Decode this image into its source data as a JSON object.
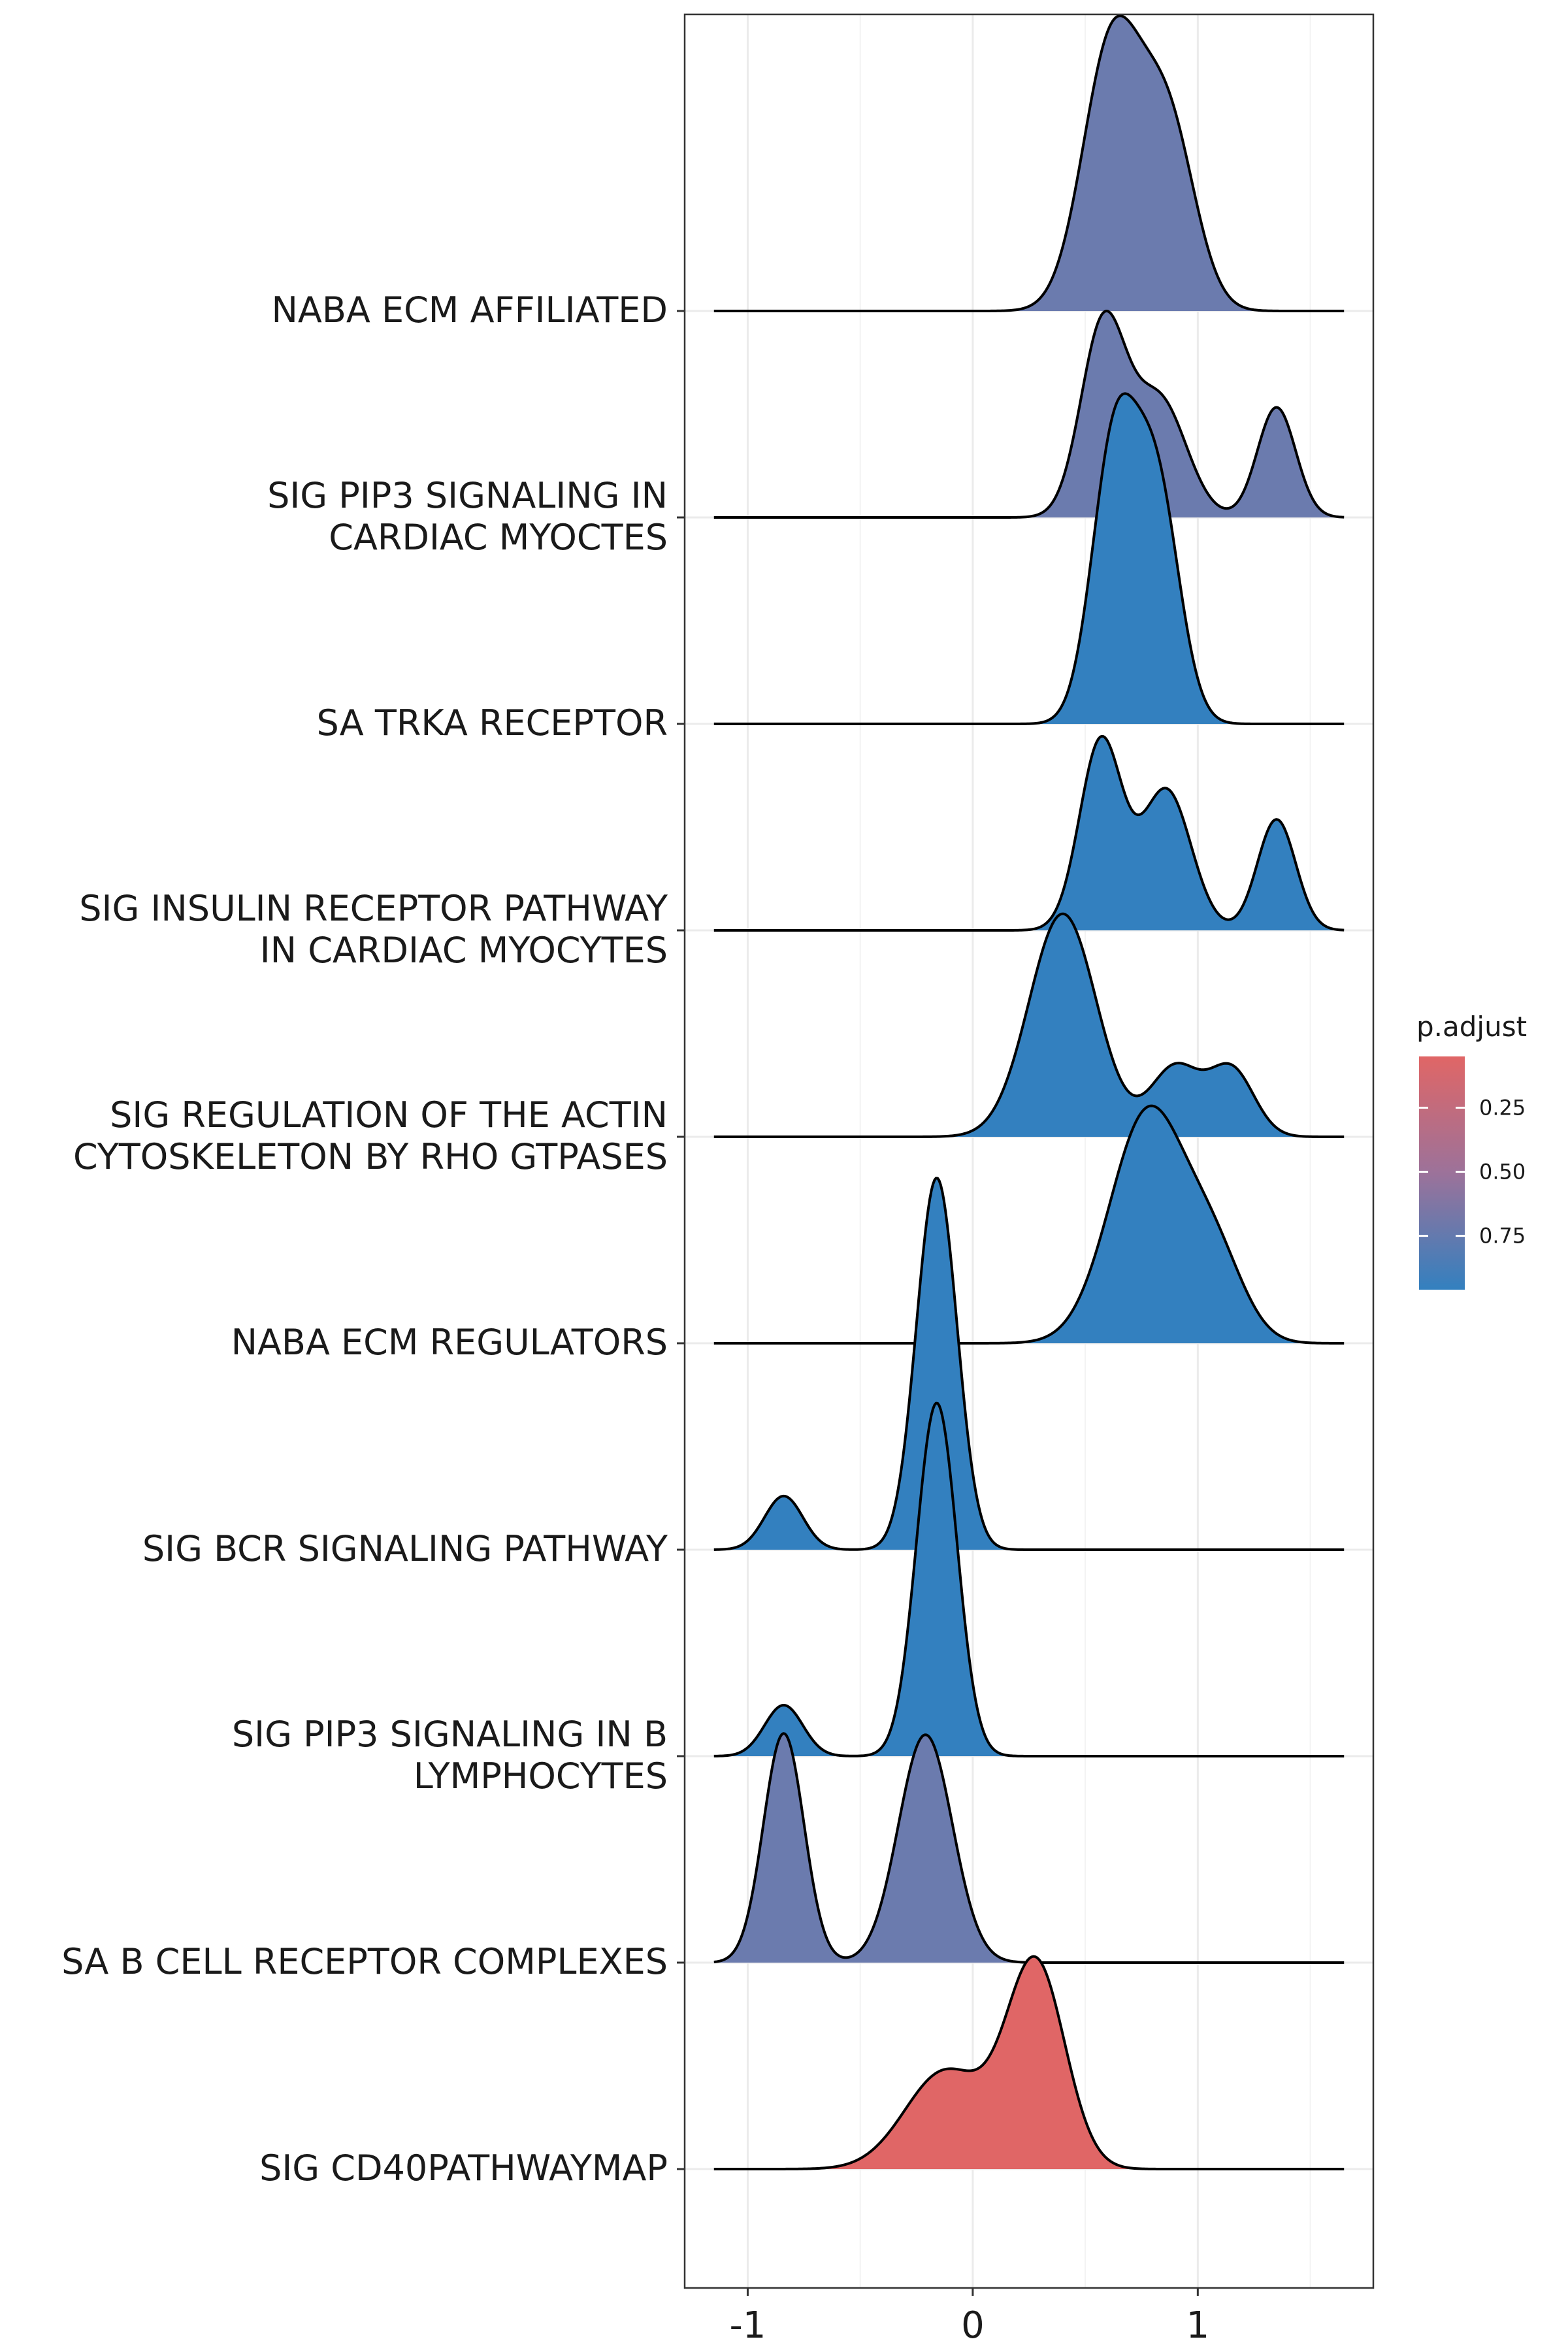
{
  "chart_data": {
    "type": "ridgeline",
    "xlim": [
      -1.28,
      1.78
    ],
    "x_ticks": [
      -1,
      0,
      1
    ],
    "x_tick_labels": [
      "-1",
      "0",
      "1"
    ],
    "grid": true,
    "legend": {
      "title": "p.adjust",
      "position": "right",
      "ticks": [
        0.25,
        0.5,
        0.75
      ],
      "tick_labels": [
        "0.25",
        "0.50",
        "0.75"
      ],
      "range": [
        0.05,
        0.96
      ],
      "low_color": "#E06666",
      "high_color": "#3380BF"
    },
    "series": [
      {
        "label_lines": [
          "NABA ECM AFFILIATED"
        ],
        "p_adjust": 0.8,
        "color": "#6B7BAE",
        "components": [
          {
            "mu": 0.62,
            "sd": 0.13,
            "w": 0.62
          },
          {
            "mu": 0.87,
            "sd": 0.12,
            "w": 0.38
          }
        ],
        "peak_height": 1.43
      },
      {
        "label_lines": [
          "SIG PIP3 SIGNALING IN",
          "CARDIAC MYOCTES"
        ],
        "p_adjust": 0.8,
        "color": "#6B7BAE",
        "components": [
          {
            "mu": 0.58,
            "sd": 0.1,
            "w": 0.45
          },
          {
            "mu": 0.83,
            "sd": 0.12,
            "w": 0.33
          },
          {
            "mu": 1.35,
            "sd": 0.085,
            "w": 0.22
          }
        ],
        "peak_height": 1.0
      },
      {
        "label_lines": [
          "SA TRKA RECEPTOR"
        ],
        "p_adjust": 0.96,
        "color": "#3380BF",
        "components": [
          {
            "mu": 0.63,
            "sd": 0.1,
            "w": 0.55
          },
          {
            "mu": 0.82,
            "sd": 0.1,
            "w": 0.45
          }
        ],
        "peak_height": 1.6
      },
      {
        "label_lines": [
          "SIG INSULIN RECEPTOR PATHWAY",
          "IN CARDIAC MYOCYTES"
        ],
        "p_adjust": 0.96,
        "color": "#3380BF",
        "components": [
          {
            "mu": 0.57,
            "sd": 0.095,
            "w": 0.42
          },
          {
            "mu": 0.86,
            "sd": 0.11,
            "w": 0.36
          },
          {
            "mu": 1.35,
            "sd": 0.085,
            "w": 0.22
          }
        ],
        "peak_height": 0.94
      },
      {
        "label_lines": [
          "SIG REGULATION OF THE ACTIN",
          "CYTOSKELETON BY RHO GTPASES"
        ],
        "p_adjust": 0.96,
        "color": "#3380BF",
        "components": [
          {
            "mu": 0.4,
            "sd": 0.15,
            "w": 0.7
          },
          {
            "mu": 0.9,
            "sd": 0.11,
            "w": 0.16
          },
          {
            "mu": 1.15,
            "sd": 0.1,
            "w": 0.14
          }
        ],
        "peak_height": 1.08
      },
      {
        "label_lines": [
          "NABA ECM REGULATORS"
        ],
        "p_adjust": 0.96,
        "color": "#3380BF",
        "components": [
          {
            "mu": 0.78,
            "sd": 0.17,
            "w": 0.8
          },
          {
            "mu": 1.08,
            "sd": 0.13,
            "w": 0.2
          }
        ],
        "peak_height": 1.15
      },
      {
        "label_lines": [
          "SIG BCR SIGNALING PATHWAY"
        ],
        "p_adjust": 0.96,
        "color": "#3380BF",
        "components": [
          {
            "mu": -0.84,
            "sd": 0.085,
            "w": 0.12
          },
          {
            "mu": -0.16,
            "sd": 0.09,
            "w": 0.88
          }
        ],
        "peak_height": 1.8
      },
      {
        "label_lines": [
          "SIG PIP3 SIGNALING IN B",
          "LYMPHOCYTES"
        ],
        "p_adjust": 0.96,
        "color": "#3380BF",
        "components": [
          {
            "mu": -0.84,
            "sd": 0.085,
            "w": 0.12
          },
          {
            "mu": -0.16,
            "sd": 0.09,
            "w": 0.88
          }
        ],
        "peak_height": 1.71
      },
      {
        "label_lines": [
          "SA B CELL RECEPTOR COMPLEXES"
        ],
        "p_adjust": 0.8,
        "color": "#6B7BAE",
        "components": [
          {
            "mu": -0.84,
            "sd": 0.09,
            "w": 0.43
          },
          {
            "mu": -0.21,
            "sd": 0.12,
            "w": 0.57
          }
        ],
        "peak_height": 1.11
      },
      {
        "label_lines": [
          "SIG CD40PATHWAYMAP"
        ],
        "p_adjust": 0.05,
        "color": "#E06666",
        "components": [
          {
            "mu": -0.12,
            "sd": 0.18,
            "w": 0.4
          },
          {
            "mu": 0.28,
            "sd": 0.13,
            "w": 0.6
          }
        ],
        "peak_height": 1.03
      }
    ]
  }
}
